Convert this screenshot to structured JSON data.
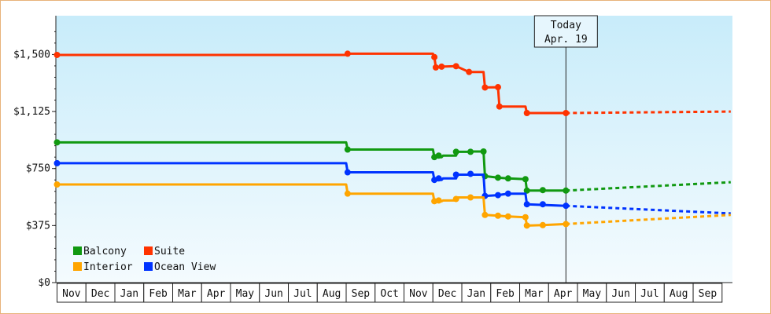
{
  "chart_data": {
    "type": "line",
    "title": "",
    "xlabel": "",
    "ylabel": "",
    "x_ticks": [
      "Nov",
      "Dec",
      "Jan",
      "Feb",
      "Mar",
      "Apr",
      "May",
      "Jun",
      "Jul",
      "Aug",
      "Sep",
      "Oct",
      "Nov",
      "Dec",
      "Jan",
      "Feb",
      "Mar",
      "Apr",
      "May",
      "Jun",
      "Jul",
      "Aug",
      "Sep"
    ],
    "y_ticks": [
      "$0",
      "$375",
      "$750",
      "$1,125",
      "$1,500"
    ],
    "y_tick_values": [
      0,
      375,
      750,
      1125,
      1500
    ],
    "ylim": [
      0,
      1755
    ],
    "xlim": [
      0,
      23.4
    ],
    "grid": false,
    "legend_position": "bottom-left",
    "today": {
      "line1": "Today",
      "line2": "Apr. 19",
      "x": 17.6
    },
    "series": [
      {
        "name": "Suite",
        "color": "#ff3300",
        "points": [
          [
            0,
            1497
          ],
          [
            10.0,
            1497
          ],
          [
            10.05,
            1505
          ],
          [
            13.0,
            1505
          ],
          [
            13.05,
            1483
          ],
          [
            13.1,
            1415
          ],
          [
            13.3,
            1420
          ],
          [
            13.8,
            1423
          ],
          [
            14.25,
            1385
          ],
          [
            14.75,
            1385
          ],
          [
            14.8,
            1283
          ],
          [
            15.25,
            1285
          ],
          [
            15.3,
            1158
          ],
          [
            15.6,
            1158
          ],
          [
            16.2,
            1158
          ],
          [
            16.25,
            1115
          ],
          [
            17.6,
            1115
          ]
        ],
        "markers": [
          [
            0,
            1497
          ],
          [
            10.05,
            1505
          ],
          [
            13.05,
            1483
          ],
          [
            13.1,
            1415
          ],
          [
            13.3,
            1420
          ],
          [
            13.8,
            1423
          ],
          [
            14.25,
            1385
          ],
          [
            14.8,
            1283
          ],
          [
            15.25,
            1285
          ],
          [
            15.3,
            1158
          ],
          [
            16.25,
            1115
          ],
          [
            17.6,
            1115
          ]
        ],
        "forecast": [
          [
            17.6,
            1115
          ],
          [
            23.3,
            1125
          ]
        ]
      },
      {
        "name": "Balcony",
        "color": "#119911",
        "points": [
          [
            0,
            922
          ],
          [
            10.0,
            922
          ],
          [
            10.05,
            875
          ],
          [
            13.0,
            875
          ],
          [
            13.05,
            825
          ],
          [
            13.3,
            825
          ],
          [
            13.35,
            835
          ],
          [
            13.8,
            835
          ],
          [
            13.85,
            860
          ],
          [
            14.25,
            860
          ],
          [
            14.3,
            862
          ],
          [
            14.75,
            862
          ],
          [
            14.8,
            700
          ],
          [
            15.25,
            690
          ],
          [
            15.6,
            685
          ],
          [
            16.2,
            680
          ],
          [
            16.25,
            605
          ],
          [
            17.6,
            605
          ]
        ],
        "markers": [
          [
            0,
            922
          ],
          [
            10.05,
            875
          ],
          [
            13.05,
            825
          ],
          [
            13.2,
            835
          ],
          [
            13.8,
            860
          ],
          [
            14.3,
            860
          ],
          [
            14.75,
            862
          ],
          [
            14.8,
            700
          ],
          [
            15.25,
            690
          ],
          [
            15.6,
            685
          ],
          [
            16.2,
            680
          ],
          [
            16.25,
            605
          ],
          [
            16.8,
            608
          ],
          [
            17.6,
            605
          ]
        ],
        "forecast": [
          [
            17.6,
            605
          ],
          [
            23.3,
            660
          ]
        ]
      },
      {
        "name": "Ocean View",
        "color": "#0033ff",
        "points": [
          [
            0,
            785
          ],
          [
            10.0,
            785
          ],
          [
            10.05,
            725
          ],
          [
            13.0,
            725
          ],
          [
            13.05,
            675
          ],
          [
            13.3,
            675
          ],
          [
            13.35,
            685
          ],
          [
            13.8,
            685
          ],
          [
            13.85,
            710
          ],
          [
            14.75,
            710
          ],
          [
            14.8,
            570
          ],
          [
            15.25,
            575
          ],
          [
            15.6,
            585
          ],
          [
            16.2,
            585
          ],
          [
            16.25,
            515
          ],
          [
            17.6,
            505
          ]
        ],
        "markers": [
          [
            0,
            785
          ],
          [
            10.05,
            725
          ],
          [
            13.05,
            675
          ],
          [
            13.2,
            685
          ],
          [
            13.8,
            710
          ],
          [
            14.3,
            715
          ],
          [
            14.8,
            570
          ],
          [
            15.25,
            575
          ],
          [
            15.6,
            585
          ],
          [
            16.25,
            515
          ],
          [
            16.8,
            515
          ],
          [
            17.6,
            505
          ]
        ],
        "forecast": [
          [
            17.6,
            505
          ],
          [
            23.3,
            455
          ]
        ]
      },
      {
        "name": "Interior",
        "color": "#ffa500",
        "points": [
          [
            0,
            645
          ],
          [
            10.0,
            645
          ],
          [
            10.05,
            585
          ],
          [
            13.0,
            585
          ],
          [
            13.05,
            535
          ],
          [
            13.3,
            535
          ],
          [
            13.35,
            540
          ],
          [
            13.8,
            540
          ],
          [
            13.85,
            560
          ],
          [
            14.25,
            560
          ],
          [
            14.75,
            560
          ],
          [
            14.8,
            445
          ],
          [
            15.25,
            440
          ],
          [
            15.6,
            435
          ],
          [
            16.2,
            430
          ],
          [
            16.25,
            375
          ],
          [
            16.8,
            378
          ],
          [
            17.6,
            385
          ]
        ],
        "markers": [
          [
            0,
            645
          ],
          [
            10.05,
            585
          ],
          [
            13.05,
            535
          ],
          [
            13.2,
            540
          ],
          [
            13.8,
            550
          ],
          [
            14.3,
            560
          ],
          [
            14.8,
            445
          ],
          [
            15.25,
            440
          ],
          [
            15.6,
            435
          ],
          [
            16.2,
            430
          ],
          [
            16.25,
            375
          ],
          [
            16.8,
            378
          ],
          [
            17.6,
            385
          ]
        ],
        "forecast": [
          [
            17.6,
            385
          ],
          [
            23.3,
            445
          ]
        ]
      }
    ],
    "legend": [
      {
        "name": "Balcony",
        "color": "#119911"
      },
      {
        "name": "Suite",
        "color": "#ff3300"
      },
      {
        "name": "Interior",
        "color": "#ffa500"
      },
      {
        "name": "Ocean View",
        "color": "#0033ff"
      }
    ]
  }
}
